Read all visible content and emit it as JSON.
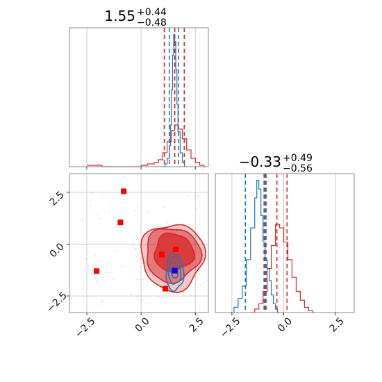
{
  "chart_data": [
    {
      "type": "histogram",
      "panel": "top-left",
      "title_main": "1.55",
      "title_sup": "+0.44",
      "title_sub": "−0.48",
      "xlim": [
        -3.3,
        3.1
      ],
      "grid": true,
      "series": [
        {
          "name": "",
          "color": "#1f77b4",
          "quantiles": [
            1.3,
            1.55,
            1.72
          ],
          "x": [
            1.0,
            1.1,
            1.2,
            1.3,
            1.35,
            1.4,
            1.45,
            1.5,
            1.55,
            1.6,
            1.65,
            1.7,
            1.8,
            1.9,
            2.0
          ],
          "counts": [
            0,
            0.02,
            0.06,
            0.15,
            0.3,
            0.55,
            0.8,
            0.95,
            0.9,
            0.7,
            0.45,
            0.25,
            0.1,
            0.03,
            0
          ]
        },
        {
          "name": "",
          "color": "#d62728",
          "quantiles": [
            1.07,
            1.55,
            1.99
          ],
          "x": [
            -2.5,
            -2.2,
            -1.8,
            -1.2,
            -0.5,
            0.0,
            0.3,
            0.6,
            0.8,
            1.0,
            1.2,
            1.4,
            1.55,
            1.7,
            1.9,
            2.1,
            2.3,
            2.5,
            2.7,
            2.9
          ],
          "counts": [
            0.01,
            0.01,
            0.0,
            0.0,
            0.0,
            0.01,
            0.02,
            0.03,
            0.05,
            0.1,
            0.18,
            0.26,
            0.3,
            0.27,
            0.2,
            0.12,
            0.06,
            0.03,
            0.01,
            0.0
          ]
        }
      ]
    },
    {
      "type": "contour",
      "panel": "bottom-left",
      "xlim": [
        -3.3,
        3.1
      ],
      "ylim": [
        -3.3,
        3.4
      ],
      "xticks": [
        "−2.5",
        "0.0",
        "2.5"
      ],
      "xtick_values": [
        -2.5,
        0.0,
        2.5
      ],
      "yticks": [
        "−2.5",
        "0.0",
        "2.5"
      ],
      "ytick_values": [
        -2.5,
        0.0,
        2.5
      ],
      "grid": true,
      "red_contours": [
        {
          "level": 1,
          "color": "#d62728",
          "cx": 1.45,
          "cy": -0.6,
          "rx": 1.45,
          "ry": 1.6,
          "opacity": 0.25
        },
        {
          "level": 2,
          "color": "#d62728",
          "cx": 1.45,
          "cy": -0.5,
          "rx": 1.25,
          "ry": 1.3,
          "opacity": 0.5
        },
        {
          "level": 3,
          "color": "#d62728",
          "cx": 1.5,
          "cy": -0.4,
          "rx": 0.9,
          "ry": 0.9,
          "opacity": 0.75
        }
      ],
      "blue_contours": [
        {
          "level": 1,
          "color": "#1f77b4",
          "cx": 1.55,
          "cy": -1.35,
          "rx": 0.4,
          "ry": 0.9
        },
        {
          "level": 2,
          "color": "#1f77b4",
          "cx": 1.55,
          "cy": -1.3,
          "rx": 0.28,
          "ry": 0.65
        },
        {
          "level": 3,
          "color": "#1f77b4",
          "cx": 1.55,
          "cy": -1.3,
          "rx": 0.15,
          "ry": 0.35
        }
      ],
      "red_markers": [
        {
          "x": -0.8,
          "y": 2.55
        },
        {
          "x": -0.95,
          "y": 1.05
        },
        {
          "x": -2.05,
          "y": -1.3
        },
        {
          "x": 0.95,
          "y": -0.5
        },
        {
          "x": 1.6,
          "y": -0.25
        },
        {
          "x": 1.12,
          "y": -2.15
        }
      ],
      "blue_markers": [
        {
          "x": 1.55,
          "y": -1.28
        }
      ]
    },
    {
      "type": "histogram",
      "panel": "bottom-right",
      "title_main": "−0.33",
      "title_sup": "+0.49",
      "title_sub": "−0.56",
      "xlim": [
        -3.3,
        3.4
      ],
      "xticks": [
        "−2.5",
        "0.0",
        "2.5"
      ],
      "xtick_values": [
        -2.5,
        0.0,
        2.5
      ],
      "grid": true,
      "series": [
        {
          "name": "",
          "color": "#1f77b4",
          "quantiles": [
            -1.85,
            -0.95,
            -0.85
          ],
          "x": [
            -2.6,
            -2.4,
            -2.2,
            -2.0,
            -1.8,
            -1.6,
            -1.4,
            -1.3,
            -1.2,
            -1.1,
            -1.0,
            -0.9,
            -0.8,
            -0.7,
            -0.6,
            -0.5,
            -0.4,
            -0.3
          ],
          "counts": [
            0.0,
            0.03,
            0.08,
            0.15,
            0.3,
            0.48,
            0.65,
            0.75,
            0.7,
            0.55,
            0.4,
            0.3,
            0.25,
            0.18,
            0.1,
            0.05,
            0.02,
            0.0
          ]
        },
        {
          "name": "",
          "color": "#d62728",
          "quantiles": [
            -0.9,
            -0.33,
            0.16
          ],
          "x": [
            -1.6,
            -1.4,
            -1.2,
            -1.0,
            -0.8,
            -0.6,
            -0.4,
            -0.2,
            0.0,
            0.2,
            0.4,
            0.6,
            0.8,
            1.0,
            1.2,
            1.4
          ],
          "counts": [
            0.0,
            0.02,
            0.05,
            0.12,
            0.25,
            0.38,
            0.5,
            0.48,
            0.4,
            0.3,
            0.2,
            0.12,
            0.07,
            0.03,
            0.01,
            0.0
          ]
        }
      ]
    }
  ]
}
